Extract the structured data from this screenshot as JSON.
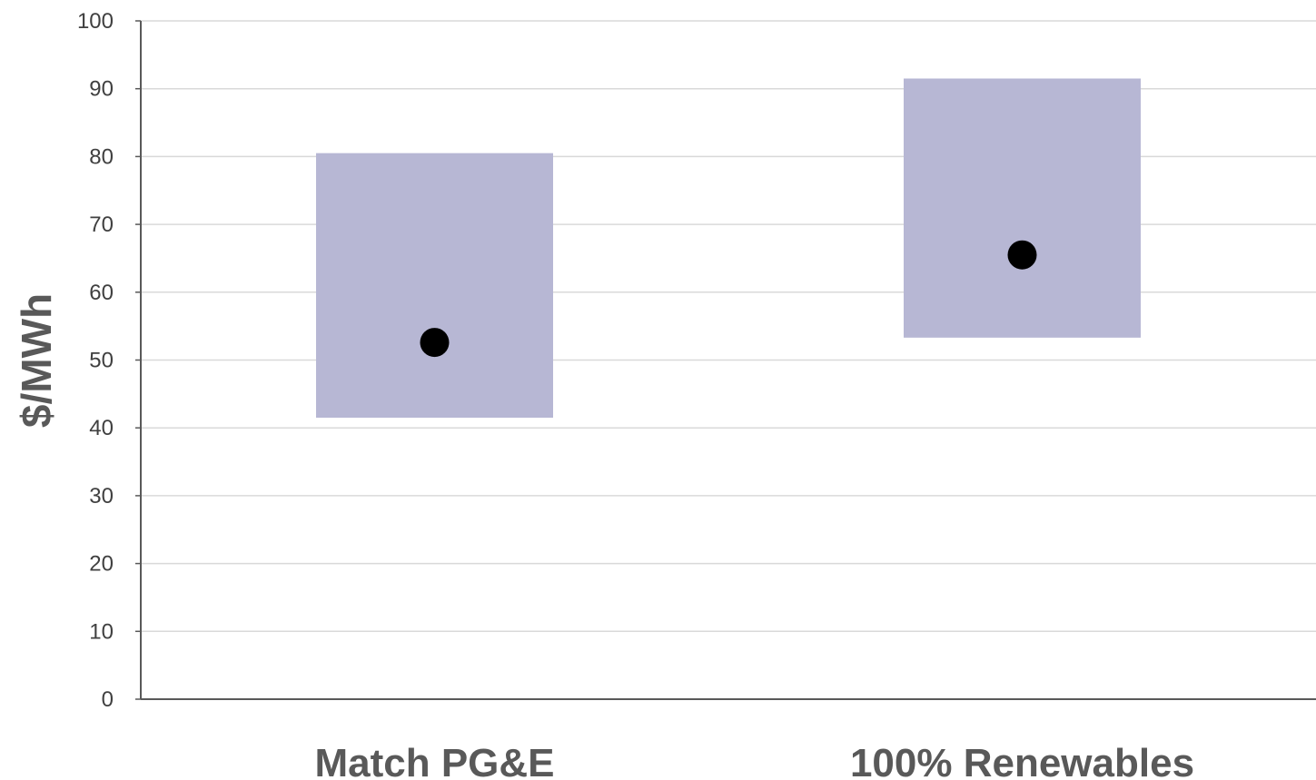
{
  "chart_data": {
    "type": "range",
    "ylabel": "$/MWh",
    "ylim": [
      0,
      100
    ],
    "y_ticks": [
      0,
      10,
      20,
      30,
      40,
      50,
      60,
      70,
      80,
      90,
      100
    ],
    "grid": true,
    "categories": [
      "Match PG&E",
      "100% Renewables"
    ],
    "ranges": [
      {
        "low": 41.5,
        "high": 80.5,
        "point": 52.6
      },
      {
        "low": 53.3,
        "high": 91.5,
        "point": 65.5
      }
    ],
    "colors": {
      "range_fill": "#b7b7d4",
      "point": "#000000",
      "grid": "#d9d9d9",
      "axis": "#595959"
    }
  }
}
